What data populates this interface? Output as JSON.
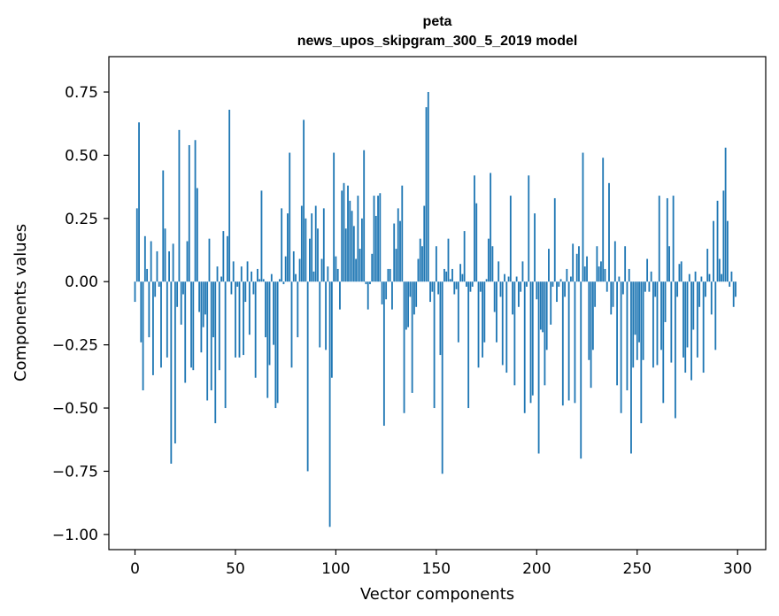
{
  "chart_data": {
    "type": "bar",
    "title_line1": "peta",
    "title_line2": "news_upos_skipgram_300_5_2019 model",
    "xlabel": "Vector components",
    "ylabel": "Components values",
    "xlim": [
      -13,
      314
    ],
    "ylim": [
      -1.06,
      0.89
    ],
    "xticks": [
      {
        "value": 0,
        "label": "0"
      },
      {
        "value": 50,
        "label": "50"
      },
      {
        "value": 100,
        "label": "100"
      },
      {
        "value": 150,
        "label": "150"
      },
      {
        "value": 200,
        "label": "200"
      },
      {
        "value": 250,
        "label": "250"
      },
      {
        "value": 300,
        "label": "300"
      }
    ],
    "yticks": [
      {
        "value": 0.75,
        "label": "0.75"
      },
      {
        "value": 0.5,
        "label": "0.50"
      },
      {
        "value": 0.25,
        "label": "0.25"
      },
      {
        "value": 0.0,
        "label": "0.00"
      },
      {
        "value": -0.25,
        "label": "−0.25"
      },
      {
        "value": -0.5,
        "label": "−0.50"
      },
      {
        "value": -0.75,
        "label": "−0.75"
      },
      {
        "value": -1.0,
        "label": "−1.00"
      }
    ],
    "grid": false,
    "bar_color": "#1f77b4",
    "values": [
      -0.08,
      0.29,
      0.63,
      -0.24,
      -0.43,
      0.18,
      0.05,
      -0.22,
      0.16,
      -0.37,
      -0.06,
      0.12,
      -0.02,
      -0.34,
      0.44,
      0.21,
      -0.3,
      0.12,
      -0.72,
      0.15,
      -0.64,
      -0.1,
      0.6,
      -0.17,
      -0.05,
      -0.4,
      0.16,
      0.54,
      -0.34,
      -0.35,
      0.56,
      0.37,
      -0.12,
      -0.28,
      -0.18,
      -0.13,
      -0.47,
      0.17,
      -0.43,
      -0.22,
      -0.56,
      0.06,
      -0.35,
      0.02,
      0.2,
      -0.5,
      0.18,
      0.68,
      -0.05,
      0.08,
      -0.3,
      -0.02,
      -0.3,
      0.06,
      -0.29,
      -0.08,
      0.08,
      -0.21,
      0.04,
      -0.05,
      -0.38,
      0.05,
      0.01,
      0.36,
      0.01,
      -0.22,
      -0.46,
      -0.33,
      0.03,
      -0.25,
      -0.5,
      -0.48,
      0.01,
      0.29,
      -0.01,
      0.1,
      0.27,
      0.51,
      -0.34,
      0.12,
      0.03,
      -0.22,
      0.09,
      0.3,
      0.64,
      0.25,
      -0.75,
      0.17,
      0.27,
      0.04,
      0.3,
      0.21,
      -0.26,
      0.09,
      0.29,
      -0.27,
      0.06,
      -0.97,
      -0.38,
      0.51,
      0.1,
      0.05,
      -0.11,
      0.36,
      0.39,
      0.21,
      0.38,
      0.32,
      0.28,
      0.22,
      0.09,
      0.34,
      0.13,
      0.25,
      0.52,
      -0.01,
      -0.11,
      -0.01,
      0.11,
      0.34,
      0.26,
      0.34,
      0.35,
      -0.09,
      -0.57,
      -0.07,
      0.05,
      0.05,
      -0.11,
      0.23,
      0.13,
      0.29,
      0.24,
      0.38,
      -0.52,
      -0.19,
      -0.18,
      -0.06,
      -0.44,
      -0.13,
      -0.1,
      0.09,
      0.17,
      0.14,
      0.3,
      0.69,
      0.75,
      -0.08,
      -0.04,
      -0.5,
      0.14,
      -0.05,
      -0.29,
      -0.76,
      0.05,
      0.04,
      0.17,
      0.01,
      0.05,
      -0.05,
      -0.03,
      -0.24,
      0.07,
      0.03,
      0.2,
      -0.02,
      -0.5,
      -0.04,
      -0.02,
      0.42,
      0.31,
      -0.34,
      -0.04,
      -0.3,
      -0.24,
      0.01,
      0.17,
      0.43,
      0.14,
      -0.12,
      -0.24,
      0.08,
      -0.06,
      -0.33,
      0.03,
      -0.36,
      0.02,
      0.34,
      -0.13,
      -0.41,
      0.02,
      -0.1,
      -0.04,
      0.08,
      -0.52,
      -0.02,
      0.42,
      -0.48,
      -0.45,
      0.27,
      -0.07,
      -0.68,
      -0.19,
      -0.2,
      -0.41,
      -0.27,
      0.13,
      -0.17,
      -0.02,
      0.33,
      -0.08,
      -0.02,
      0.01,
      -0.49,
      -0.06,
      0.05,
      -0.47,
      0.02,
      0.15,
      -0.48,
      0.11,
      0.14,
      -0.7,
      0.51,
      0.06,
      0.1,
      -0.31,
      -0.42,
      -0.27,
      -0.1,
      0.14,
      0.06,
      0.08,
      0.49,
      0.05,
      -0.04,
      0.39,
      -0.13,
      -0.1,
      0.16,
      -0.41,
      0.02,
      -0.52,
      -0.05,
      0.14,
      -0.43,
      0.05,
      -0.68,
      -0.34,
      -0.21,
      -0.31,
      -0.24,
      -0.56,
      -0.31,
      -0.04,
      0.09,
      -0.04,
      0.04,
      -0.34,
      -0.06,
      -0.33,
      0.34,
      -0.27,
      -0.48,
      -0.16,
      0.33,
      0.14,
      -0.32,
      0.34,
      -0.54,
      -0.06,
      0.07,
      0.08,
      -0.3,
      -0.36,
      -0.26,
      0.03,
      -0.39,
      -0.19,
      0.04,
      -0.3,
      -0.1,
      0.02,
      -0.36,
      -0.06,
      0.13,
      0.03,
      -0.13,
      0.24,
      -0.27,
      0.32,
      0.09,
      0.03,
      0.36,
      0.53,
      0.24,
      -0.02,
      0.04,
      -0.1,
      -0.06
    ]
  }
}
